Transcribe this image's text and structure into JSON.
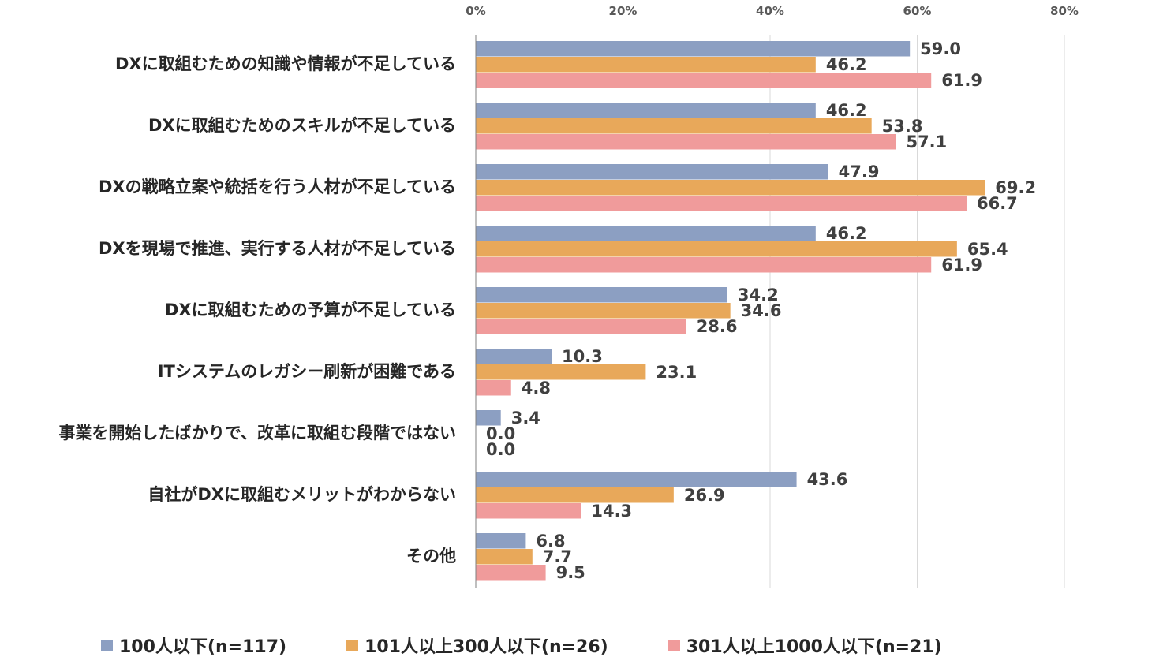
{
  "chart_data": {
    "type": "bar",
    "orientation": "horizontal",
    "categories": [
      "DXに取組むための知識や情報が不足している",
      "DXに取組むためのスキルが不足している",
      "DXの戦略立案や統括を行う人材が不足している",
      "DXを現場で推進、実行する人材が不足している",
      "DXに取組むための予算が不足している",
      "ITシステムのレガシー刷新が困難である",
      "事業を開始したばかりで、改革に取組む段階ではない",
      "自社がDXに取組むメリットがわからない",
      "その他"
    ],
    "series": [
      {
        "name": "100人以下(n=117)",
        "color": "#8C9FC2",
        "values": [
          59.0,
          46.2,
          47.9,
          46.2,
          34.2,
          10.3,
          3.4,
          43.6,
          6.8
        ]
      },
      {
        "name": "101人以上300人以下(n=26)",
        "color": "#E8A85A",
        "values": [
          46.2,
          53.8,
          69.2,
          65.4,
          34.6,
          23.1,
          0.0,
          26.9,
          7.7
        ]
      },
      {
        "name": "301人以上1000人以下(n=21)",
        "color": "#F09B9B",
        "values": [
          61.9,
          57.1,
          66.7,
          61.9,
          28.6,
          4.8,
          0.0,
          14.3,
          9.5
        ]
      }
    ],
    "xticks": [
      "0%",
      "20%",
      "40%",
      "60%",
      "80%"
    ],
    "xlim": [
      0,
      80
    ],
    "axis_position": "top",
    "grid": true,
    "legend_position": "bottom",
    "data_labels": true
  }
}
